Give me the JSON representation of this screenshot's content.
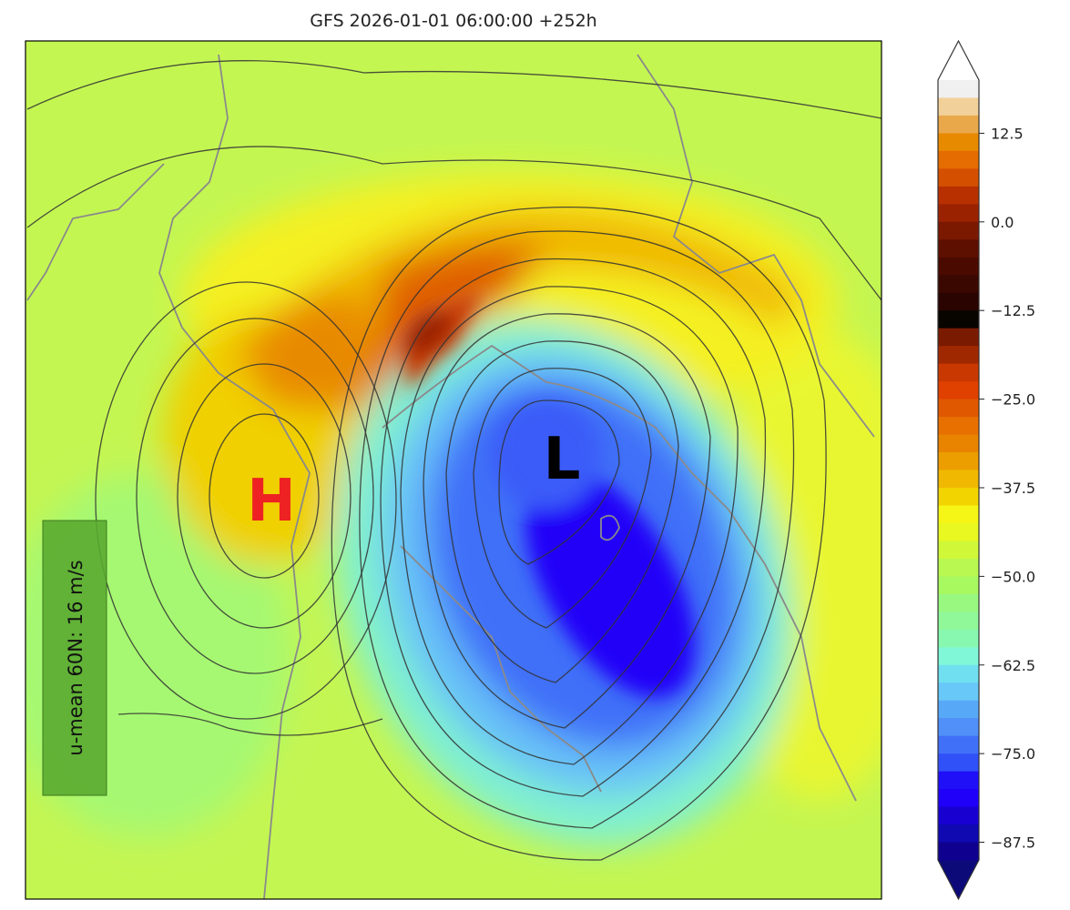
{
  "title": "GFS 2026-01-01 06:00:00 +252h",
  "map": {
    "high_label": "H",
    "low_label": "L",
    "high_color": "#ee2222",
    "low_color": "#000000",
    "info_box": "u-mean 60N: 16 m/s",
    "info_box_color": "#5aaa30"
  },
  "colorbar": {
    "min": -90,
    "max": 20,
    "step": 2.5,
    "extend": "both",
    "over_color": "#ffffff",
    "under_color": "#0c0a78",
    "ticks": [
      "12.5",
      "0.0",
      "−12.5",
      "−25.0",
      "−37.5",
      "−50.0",
      "−62.5",
      "−75.0",
      "−87.5"
    ],
    "tick_values": [
      12.5,
      0,
      -12.5,
      -25,
      -37.5,
      -50,
      -62.5,
      -75,
      -87.5
    ],
    "colors_top_to_bottom": [
      "#f0f0f0",
      "#f2d09a",
      "#e9a84a",
      "#e88a00",
      "#e56c00",
      "#d45000",
      "#b83000",
      "#9a2200",
      "#7a1800",
      "#5e1000",
      "#4a0a00",
      "#3a0800",
      "#2a0400",
      "#080400",
      "#7a1a00",
      "#a02800",
      "#c83800",
      "#e04000",
      "#e05800",
      "#e87000",
      "#e88400",
      "#ec9e00",
      "#f0b800",
      "#f2d400",
      "#f6f616",
      "#e8f820",
      "#d0f838",
      "#b8f850",
      "#a8f860",
      "#98f880",
      "#90f898",
      "#88f8b0",
      "#80f8d8",
      "#70e0f0",
      "#68c8f8",
      "#58a8f8",
      "#5090f8",
      "#4070f8",
      "#3050f8",
      "#2010f8",
      "#2000f8",
      "#1800d0",
      "#1008b0",
      "#100090"
    ]
  }
}
